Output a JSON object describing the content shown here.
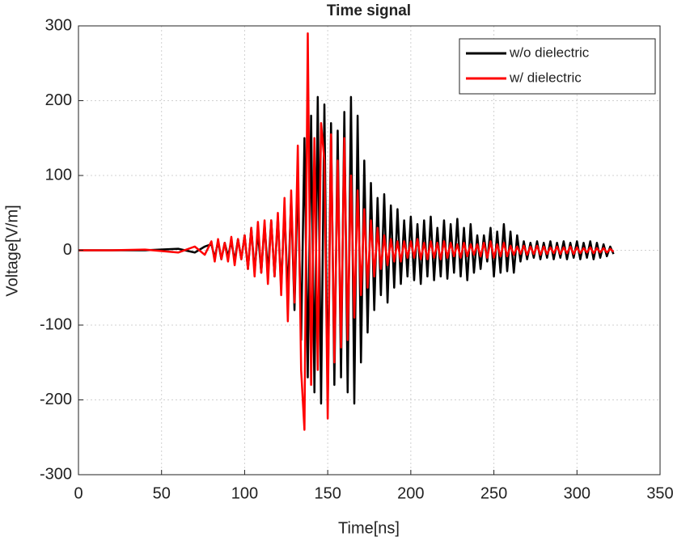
{
  "chart_data": {
    "type": "line",
    "title": "Time signal",
    "x_label": "Time[ns]",
    "y_label": "Voltage[V/m]",
    "xlim": [
      0,
      350
    ],
    "ylim": [
      -300,
      300
    ],
    "xticks": [
      0,
      50,
      100,
      150,
      200,
      250,
      300,
      350
    ],
    "yticks": [
      -300,
      -200,
      -100,
      0,
      100,
      200,
      300
    ],
    "grid": true,
    "legend": "upper right",
    "x": [
      0,
      20,
      40,
      60,
      70,
      76,
      80,
      82,
      84,
      86,
      88,
      90,
      92,
      94,
      96,
      98,
      100,
      102,
      104,
      106,
      108,
      110,
      112,
      114,
      116,
      118,
      120,
      122,
      124,
      126,
      128,
      130,
      132,
      134,
      136,
      138,
      140,
      142,
      144,
      146,
      148,
      150,
      152,
      154,
      156,
      158,
      160,
      162,
      164,
      166,
      168,
      170,
      172,
      174,
      176,
      178,
      180,
      182,
      184,
      186,
      188,
      190,
      192,
      194,
      196,
      198,
      200,
      202,
      204,
      206,
      208,
      210,
      212,
      214,
      216,
      218,
      220,
      222,
      224,
      226,
      228,
      230,
      232,
      234,
      236,
      238,
      240,
      242,
      244,
      246,
      248,
      250,
      252,
      254,
      256,
      258,
      260,
      262,
      264,
      266,
      268,
      270,
      272,
      274,
      276,
      278,
      280,
      282,
      284,
      286,
      288,
      290,
      292,
      294,
      296,
      298,
      300,
      302,
      304,
      306,
      308,
      310,
      312,
      314,
      316,
      318,
      320,
      322
    ],
    "series": [
      {
        "name": "w/o dielectric",
        "color": "#000000",
        "values": [
          0,
          0,
          0,
          2,
          -3,
          5,
          8,
          -10,
          12,
          -12,
          10,
          -8,
          12,
          -14,
          15,
          -12,
          20,
          -25,
          30,
          -28,
          25,
          -30,
          35,
          -30,
          40,
          -35,
          45,
          -50,
          55,
          -60,
          70,
          -80,
          100,
          -120,
          150,
          -170,
          180,
          -190,
          205,
          -205,
          195,
          -200,
          170,
          -180,
          160,
          -170,
          185,
          -190,
          205,
          -205,
          180,
          -150,
          120,
          -110,
          90,
          -80,
          70,
          -60,
          75,
          -70,
          60,
          -50,
          55,
          -45,
          40,
          -35,
          45,
          -40,
          35,
          -45,
          40,
          -35,
          45,
          -40,
          30,
          -35,
          40,
          -38,
          35,
          -30,
          42,
          -35,
          30,
          -40,
          35,
          -30,
          20,
          -25,
          20,
          -15,
          30,
          -35,
          25,
          -30,
          35,
          -28,
          25,
          -30,
          20,
          -15,
          12,
          -12,
          10,
          -10,
          12,
          -12,
          10,
          -10,
          12,
          -12,
          10,
          -10,
          12,
          -12,
          10,
          -10,
          12,
          -12,
          10,
          -10,
          12,
          -12,
          10,
          -10,
          8,
          -8,
          5,
          -5
        ]
      },
      {
        "name": "w/ dielectric",
        "color": "#ff0000",
        "values": [
          0,
          0,
          1,
          -3,
          5,
          -6,
          12,
          -15,
          15,
          -12,
          10,
          -15,
          18,
          -20,
          15,
          -12,
          20,
          -25,
          30,
          -35,
          38,
          -30,
          40,
          -45,
          40,
          -35,
          50,
          -60,
          70,
          -95,
          80,
          -70,
          140,
          -160,
          -240,
          290,
          -180,
          150,
          -160,
          170,
          120,
          -225,
          155,
          -150,
          120,
          -130,
          150,
          -120,
          100,
          -90,
          80,
          -60,
          55,
          -50,
          40,
          -35,
          30,
          -25,
          20,
          -20,
          15,
          -15,
          12,
          -15,
          12,
          -10,
          12,
          -10,
          15,
          -12,
          10,
          -12,
          12,
          -10,
          10,
          -12,
          12,
          -10,
          10,
          -8,
          8,
          -10,
          10,
          -8,
          8,
          -6,
          8,
          -8,
          10,
          -10,
          12,
          -10,
          8,
          -8,
          10,
          -8,
          6,
          -6,
          5,
          -5,
          6,
          -6,
          5,
          -5,
          6,
          -6,
          5,
          -5,
          4,
          -4,
          5,
          -5,
          4,
          -4,
          5,
          -5,
          4,
          -4,
          3,
          -3,
          4,
          -4,
          3,
          -3,
          3,
          -3,
          2,
          -2
        ]
      }
    ]
  }
}
